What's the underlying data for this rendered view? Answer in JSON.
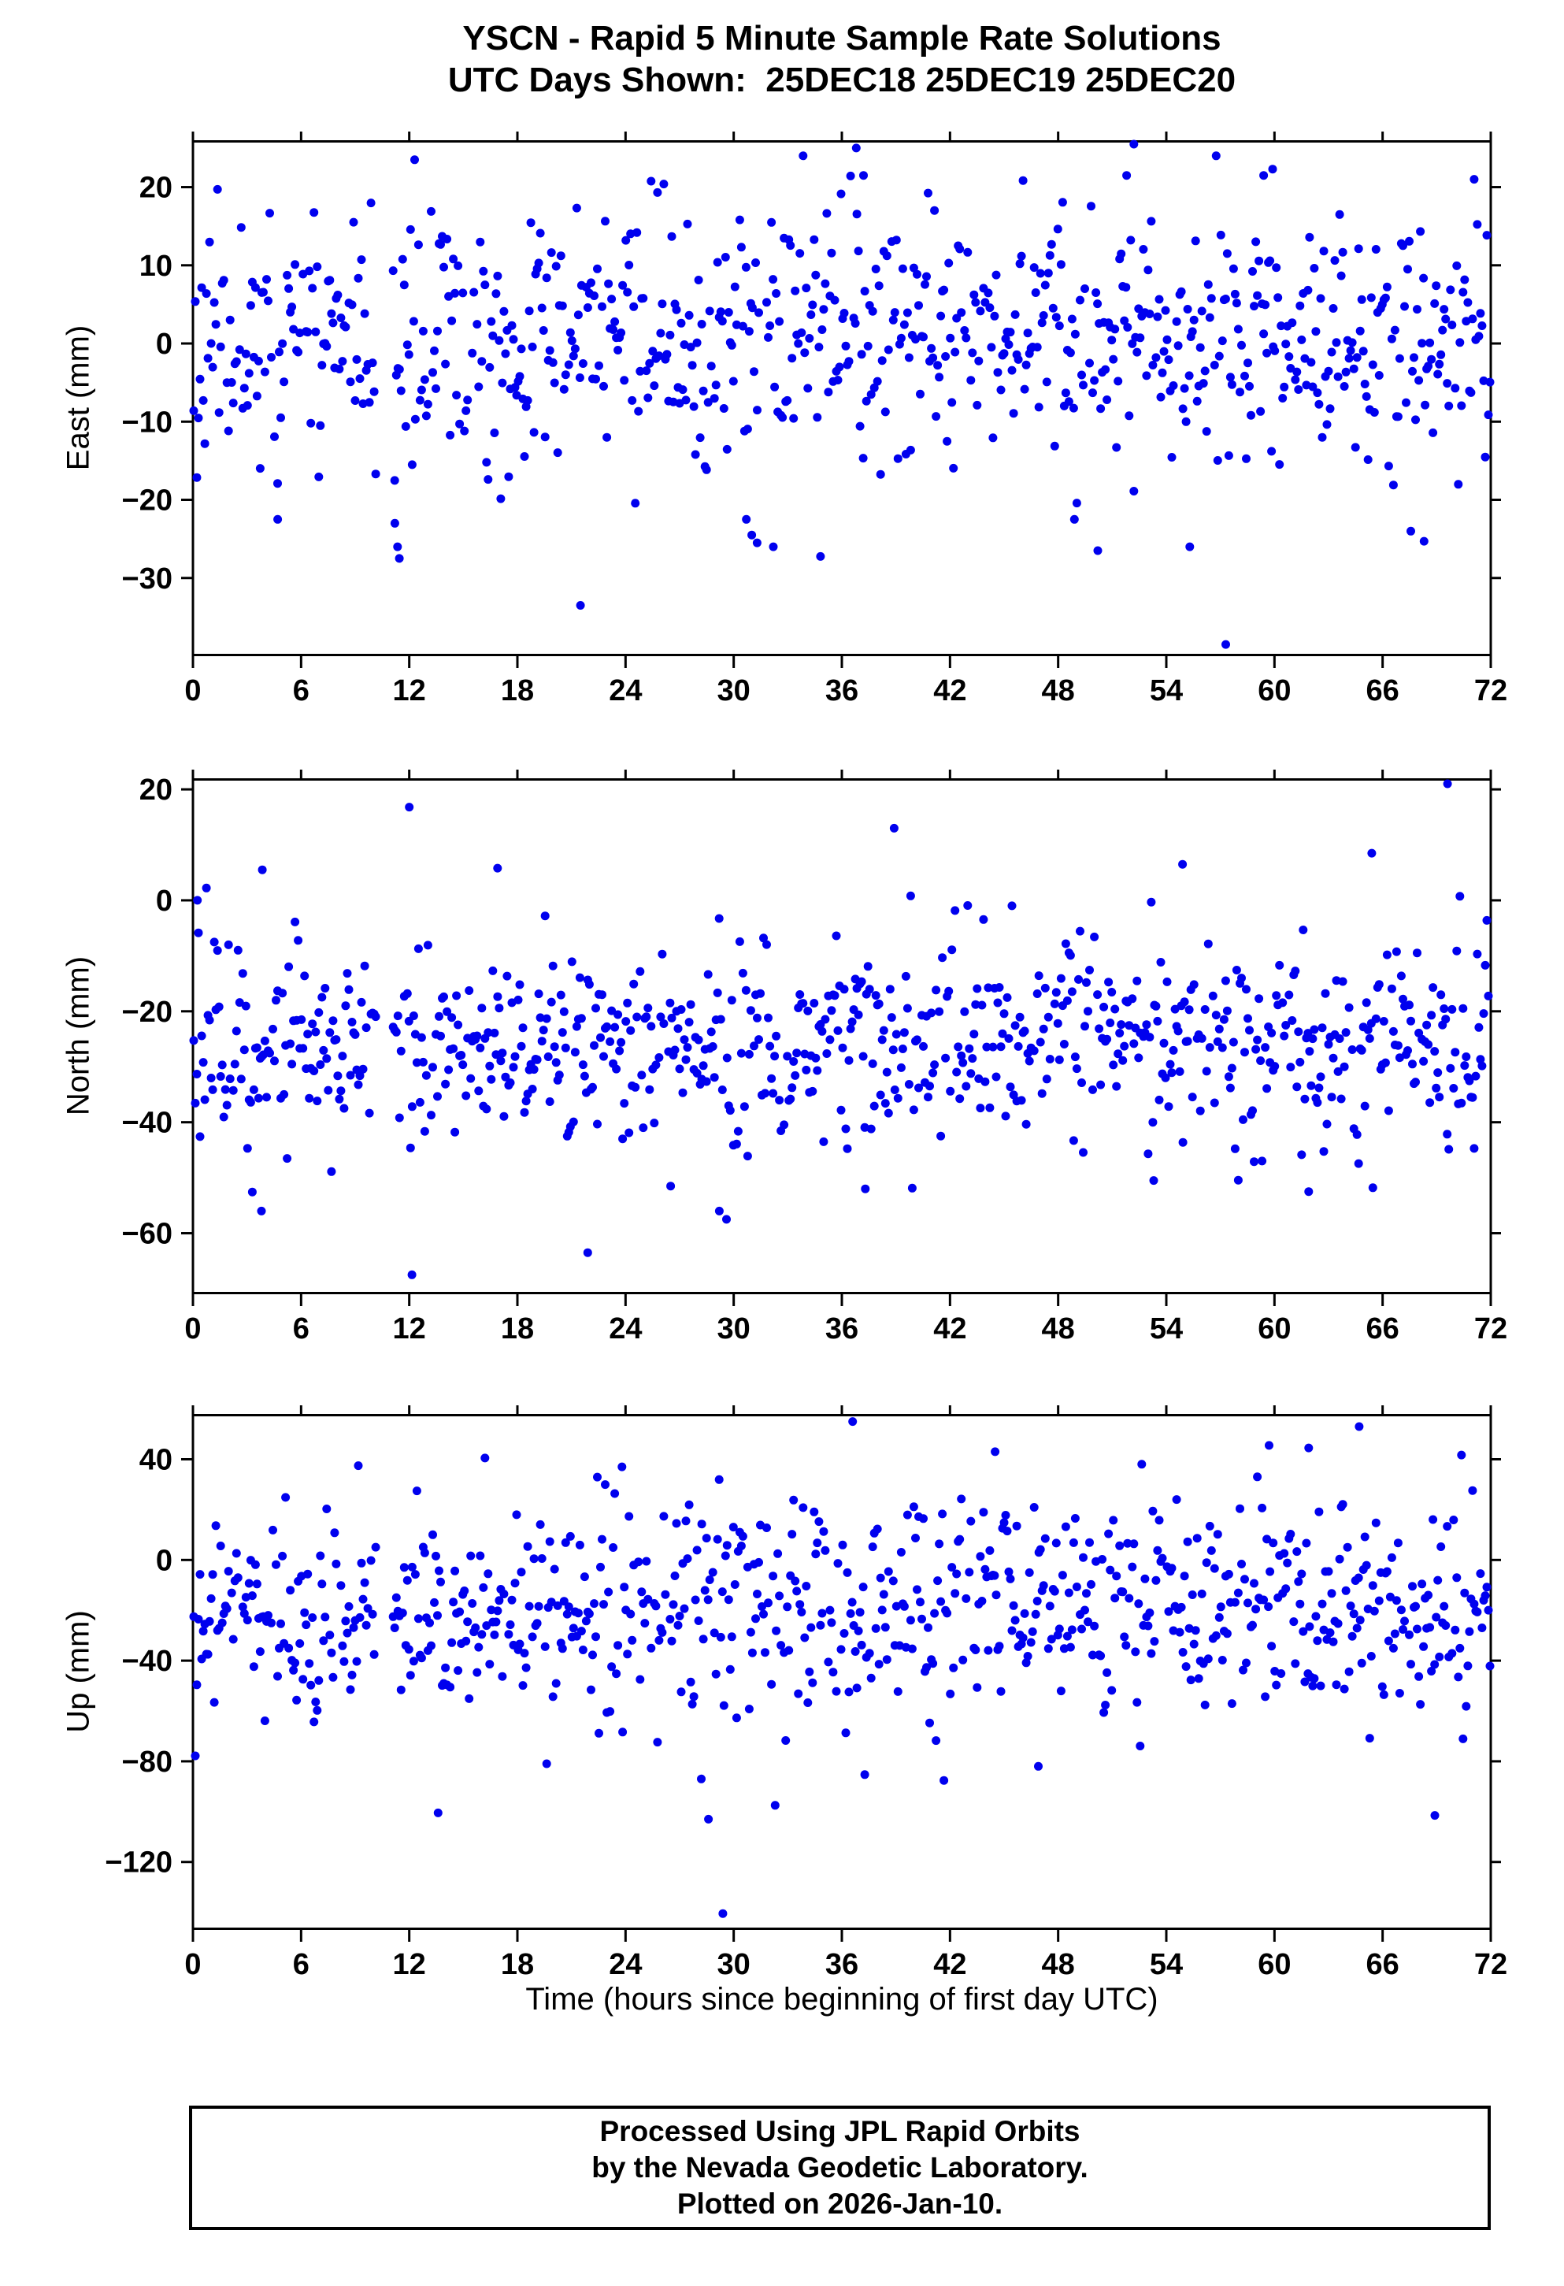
{
  "title_line1": "YSCN - Rapid 5 Minute Sample Rate Solutions",
  "title_line2": "UTC Days Shown:  25DEC18 25DEC19 25DEC20",
  "xlabel": "Time (hours since beginning of first day UTC)",
  "footer": {
    "line1": "Processed Using JPL Rapid Orbits",
    "line2": "by the Nevada Geodetic Laboratory.",
    "line3": "Plotted on 2026-Jan-10."
  },
  "chart_data": [
    {
      "type": "scatter",
      "name": "east",
      "ylabel": "East (mm)",
      "ylim": [
        -40,
        26
      ],
      "y_ticks": [
        20,
        10,
        0,
        -10,
        -20,
        -30
      ],
      "x_min": 0,
      "x_max": 72,
      "x_ticks": [
        0,
        6,
        12,
        18,
        24,
        30,
        36,
        42,
        48,
        54,
        60,
        66,
        72
      ],
      "marker_color": "#0000ee",
      "marker_radius": 5.5,
      "n_points": 820,
      "drop_rate": 0.06,
      "seed": 11,
      "mean": 0.5,
      "std": 8,
      "gaps": [
        [
          10.2,
          11.05
        ]
      ],
      "outliers": [
        [
          4.7,
          -22.5
        ],
        [
          11.2,
          -23
        ],
        [
          11.35,
          -26
        ],
        [
          11.45,
          -27.5
        ],
        [
          12.3,
          23.5
        ],
        [
          21.5,
          -33.5
        ],
        [
          30.7,
          -22.5
        ],
        [
          31.0,
          -24.5
        ],
        [
          31.3,
          -25.5
        ],
        [
          32.2,
          -26
        ],
        [
          36.8,
          25
        ],
        [
          37.2,
          21.5
        ],
        [
          48.9,
          -22.5
        ],
        [
          50.2,
          -26.5
        ],
        [
          51.8,
          21.5
        ],
        [
          52.2,
          25.5
        ],
        [
          55.3,
          -26
        ],
        [
          57.3,
          -38.5
        ],
        [
          59.4,
          21.5
        ],
        [
          59.9,
          22.3
        ],
        [
          68.3,
          -25.3
        ]
      ]
    },
    {
      "type": "scatter",
      "name": "north",
      "ylabel": "North (mm)",
      "ylim": [
        -71,
        22
      ],
      "y_ticks": [
        20,
        0,
        -20,
        -40,
        -60
      ],
      "x_min": 0,
      "x_max": 72,
      "x_ticks": [
        0,
        6,
        12,
        18,
        24,
        30,
        36,
        42,
        48,
        54,
        60,
        66,
        72
      ],
      "marker_color": "#0000ee",
      "marker_radius": 5.5,
      "n_points": 820,
      "drop_rate": 0.06,
      "seed": 22,
      "mean": -26,
      "std": 9,
      "gaps": [
        [
          10.2,
          11.05
        ]
      ],
      "outliers": [
        [
          0.25,
          0
        ],
        [
          3.85,
          5.5
        ],
        [
          3.8,
          -56
        ],
        [
          12.0,
          16.8
        ],
        [
          12.15,
          -67.5
        ],
        [
          16.9,
          5.8
        ],
        [
          21.9,
          -63.5
        ],
        [
          26.5,
          -51.5
        ],
        [
          29.2,
          -56
        ],
        [
          29.6,
          -57.5
        ],
        [
          37.3,
          -52
        ],
        [
          38.9,
          13
        ],
        [
          53.3,
          -50.5
        ],
        [
          54.9,
          6.5
        ],
        [
          61.9,
          -52.5
        ],
        [
          65.4,
          8.5
        ],
        [
          69.6,
          21
        ]
      ]
    },
    {
      "type": "scatter",
      "name": "up",
      "ylabel": "Up (mm)",
      "ylim": [
        -147,
        58
      ],
      "y_ticks": [
        40,
        0,
        -40,
        -80,
        -120
      ],
      "x_min": 0,
      "x_max": 72,
      "x_ticks": [
        0,
        6,
        12,
        18,
        24,
        30,
        36,
        42,
        48,
        54,
        60,
        66,
        72
      ],
      "marker_color": "#0000ee",
      "marker_radius": 5.5,
      "n_points": 820,
      "drop_rate": 0.06,
      "seed": 33,
      "mean": -21,
      "std": 21,
      "gaps": [
        [
          10.2,
          11.05
        ]
      ],
      "outliers": [
        [
          13.6,
          -100.5
        ],
        [
          16.2,
          40.5
        ],
        [
          23.8,
          37
        ],
        [
          28.2,
          -87
        ],
        [
          28.6,
          -103
        ],
        [
          29.4,
          -140.5
        ],
        [
          32.3,
          -97.5
        ],
        [
          36.6,
          55
        ],
        [
          44.5,
          43
        ],
        [
          46.9,
          -82
        ],
        [
          59.7,
          45.5
        ],
        [
          61.9,
          44.5
        ],
        [
          64.7,
          53
        ],
        [
          68.9,
          -101.5
        ]
      ]
    }
  ]
}
